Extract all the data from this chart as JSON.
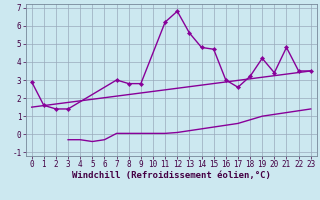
{
  "xlabel": "Windchill (Refroidissement éolien,°C)",
  "xlim": [
    -0.5,
    23.5
  ],
  "ylim": [
    -1.2,
    7.2
  ],
  "xticks": [
    0,
    1,
    2,
    3,
    4,
    5,
    6,
    7,
    8,
    9,
    10,
    11,
    12,
    13,
    14,
    15,
    16,
    17,
    18,
    19,
    20,
    21,
    22,
    23
  ],
  "yticks": [
    -1,
    0,
    1,
    2,
    3,
    4,
    5,
    6,
    7
  ],
  "bg_color": "#cce8f0",
  "line_color": "#880099",
  "grid_color": "#99aabb",
  "series": [
    {
      "x": [
        0,
        1,
        2,
        3,
        7,
        8,
        9,
        11,
        12,
        13,
        14,
        15,
        16,
        17,
        18,
        19,
        20,
        21,
        22,
        23
      ],
      "y": [
        2.9,
        1.6,
        1.4,
        1.4,
        3.0,
        2.8,
        2.8,
        6.2,
        6.8,
        5.6,
        4.8,
        4.7,
        3.0,
        2.6,
        3.2,
        4.2,
        3.4,
        4.8,
        3.5,
        3.5
      ],
      "marker": true
    },
    {
      "x": [
        3,
        4,
        5,
        6,
        7,
        8,
        9,
        10,
        11,
        12,
        13,
        14,
        15,
        16,
        17,
        18,
        19,
        20,
        21,
        22,
        23
      ],
      "y": [
        -0.3,
        -0.3,
        -0.4,
        -0.3,
        0.05,
        0.05,
        0.05,
        0.05,
        0.05,
        0.1,
        0.2,
        0.3,
        0.4,
        0.5,
        0.6,
        0.8,
        1.0,
        1.1,
        1.2,
        1.3,
        1.4
      ],
      "marker": false
    },
    {
      "x": [
        0,
        23
      ],
      "y": [
        1.5,
        3.5
      ],
      "marker": false
    }
  ],
  "font_size": 6.5,
  "tick_font_size": 5.5,
  "lw": 1.0
}
